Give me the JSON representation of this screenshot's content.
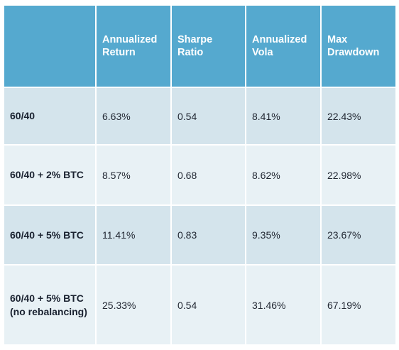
{
  "table": {
    "headers": [
      "",
      "Annualized Return",
      "Sharpe Ratio",
      "Annualized Vola",
      "Max Drawdown"
    ],
    "rows": [
      {
        "label": "60/40",
        "label_sub": "",
        "values": [
          "6.63%",
          "0.54",
          "8.41%",
          "22.43%"
        ]
      },
      {
        "label": "60/40 + 2% BTC",
        "label_sub": "",
        "values": [
          "8.57%",
          "0.68",
          "8.62%",
          "22.98%"
        ]
      },
      {
        "label": "60/40 + 5% BTC",
        "label_sub": "",
        "values": [
          "11.41%",
          "0.83",
          "9.35%",
          "23.67%"
        ]
      },
      {
        "label": "60/40 + 5% BTC",
        "label_sub": "(no rebalancing)",
        "values": [
          "25.33%",
          "0.54",
          "31.46%",
          "67.19%"
        ]
      }
    ]
  },
  "colors": {
    "header_bg": "#55a9cf",
    "row_dark": "#d4e4ec",
    "row_light": "#e8f1f5"
  }
}
